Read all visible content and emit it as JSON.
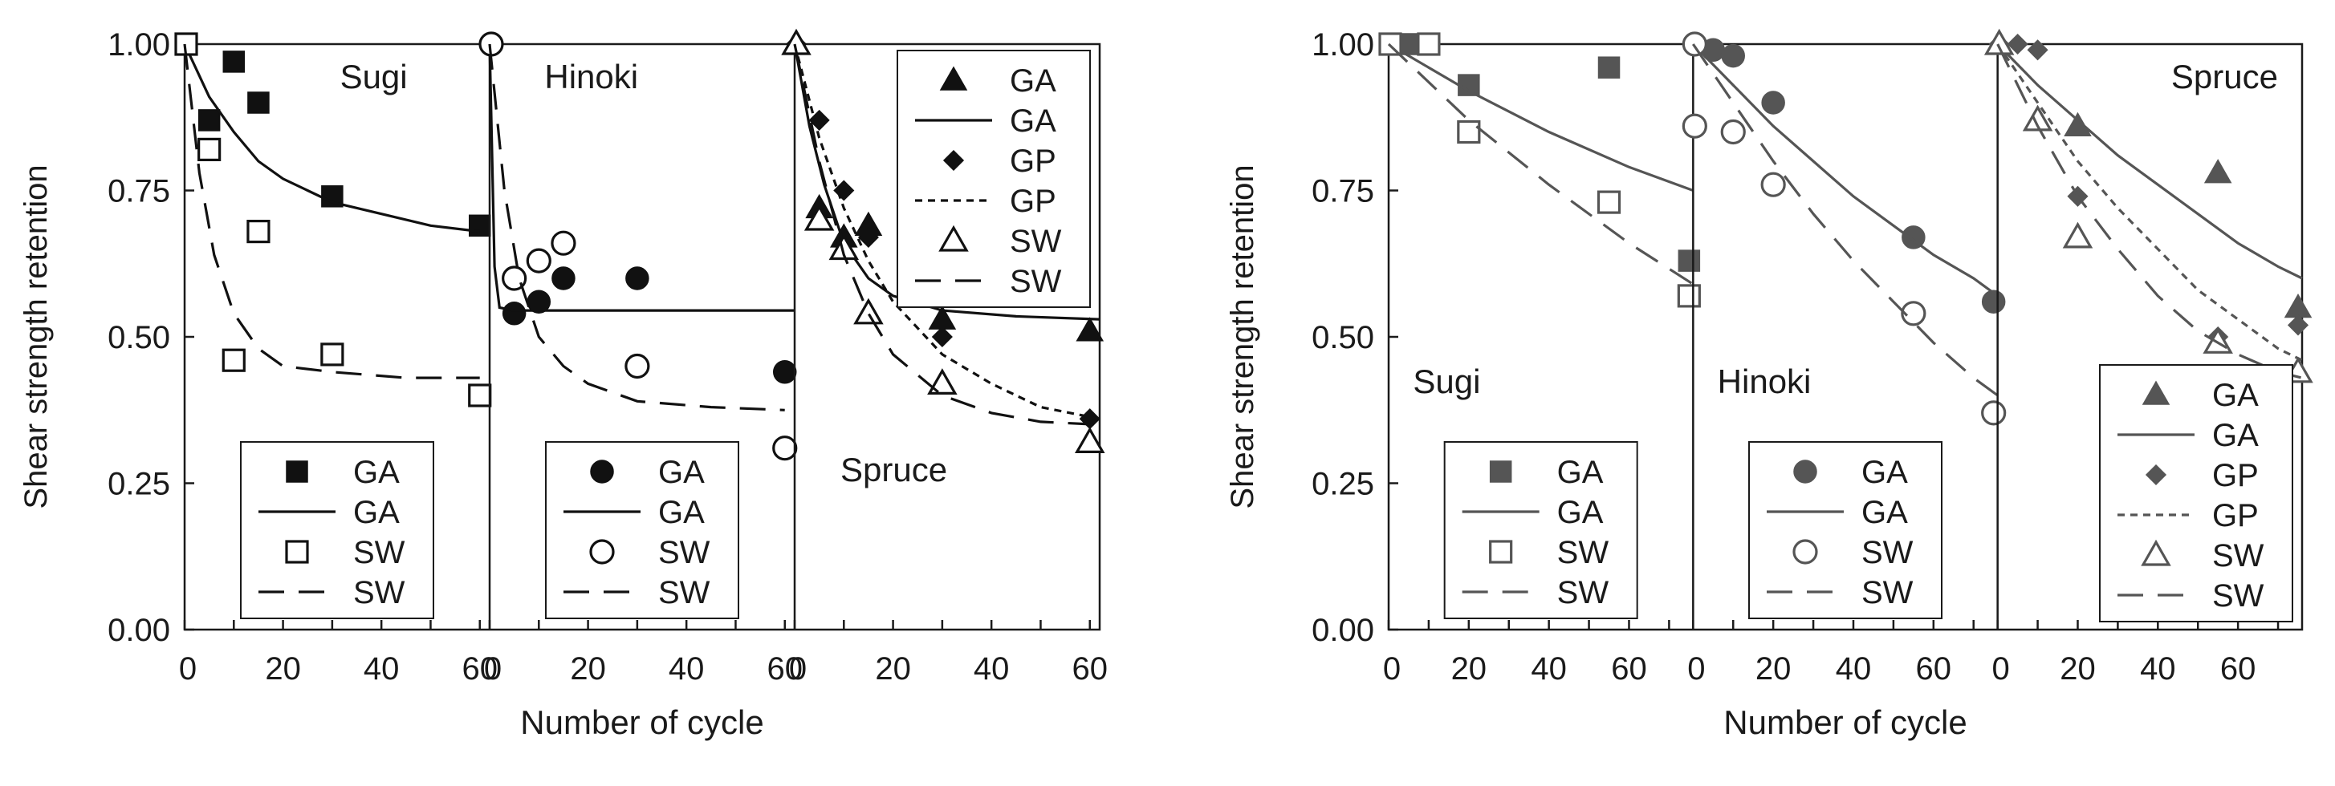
{
  "colors": {
    "left_ink": "#111111",
    "right_ink": "#555555",
    "background": "#ffffff"
  },
  "chart_data": [
    {
      "type": "scatter",
      "ylabel": "Shear strength retention",
      "xlabel": "Number of cycle",
      "ylim": [
        0,
        1
      ],
      "yticks": [
        "0.00",
        "0.25",
        "0.50",
        "0.75",
        "1.00"
      ],
      "grid": false,
      "panels": [
        {
          "label": "Sugi",
          "xlim": [
            0,
            62
          ],
          "xticks": [
            "0",
            "20",
            "40",
            "60"
          ],
          "legend_position": "bottom-center",
          "series": [
            {
              "name": "GA",
              "kind": "points",
              "marker": "square-filled",
              "x": [
                0,
                5,
                10,
                15,
                30,
                60
              ],
              "y": [
                1.0,
                0.87,
                0.97,
                0.9,
                0.74,
                0.69
              ]
            },
            {
              "name": "GA",
              "kind": "line",
              "dash": "solid",
              "x": [
                0,
                5,
                10,
                15,
                20,
                30,
                40,
                50,
                60
              ],
              "y": [
                1.0,
                0.91,
                0.85,
                0.8,
                0.77,
                0.73,
                0.71,
                0.69,
                0.68
              ]
            },
            {
              "name": "SW",
              "kind": "points",
              "marker": "square-open",
              "x": [
                0,
                5,
                10,
                15,
                30,
                60
              ],
              "y": [
                1.0,
                0.82,
                0.46,
                0.68,
                0.47,
                0.4
              ]
            },
            {
              "name": "SW",
              "kind": "line",
              "dash": "long",
              "x": [
                0,
                3,
                6,
                10,
                15,
                20,
                30,
                45,
                60
              ],
              "y": [
                1.0,
                0.78,
                0.64,
                0.54,
                0.48,
                0.45,
                0.44,
                0.43,
                0.43
              ]
            }
          ]
        },
        {
          "label": "Hinoki",
          "xlim": [
            0,
            62
          ],
          "xticks": [
            "0",
            "20",
            "40",
            "60"
          ],
          "legend_position": "bottom-center",
          "series": [
            {
              "name": "GA",
              "kind": "points",
              "marker": "circle-filled",
              "x": [
                0,
                5,
                10,
                15,
                30,
                60
              ],
              "y": [
                1.0,
                0.54,
                0.56,
                0.6,
                0.6,
                0.44
              ]
            },
            {
              "name": "GA",
              "kind": "line",
              "dash": "solid",
              "x": [
                0,
                1,
                2,
                5,
                10,
                20,
                40,
                62
              ],
              "y": [
                1.0,
                0.62,
                0.55,
                0.545,
                0.545,
                0.545,
                0.545,
                0.545
              ]
            },
            {
              "name": "SW",
              "kind": "points",
              "marker": "circle-open",
              "x": [
                0,
                5,
                10,
                15,
                30,
                60
              ],
              "y": [
                1.0,
                0.6,
                0.63,
                0.66,
                0.45,
                0.31
              ]
            },
            {
              "name": "SW",
              "kind": "line",
              "dash": "long",
              "x": [
                0,
                3,
                6,
                10,
                15,
                20,
                30,
                45,
                60
              ],
              "y": [
                1.0,
                0.75,
                0.6,
                0.5,
                0.45,
                0.42,
                0.39,
                0.38,
                0.375
              ]
            }
          ]
        },
        {
          "label": "Spruce",
          "xlim": [
            0,
            62
          ],
          "xticks": [
            "0",
            "20",
            "40",
            "60"
          ],
          "legend_position": "top-right",
          "series": [
            {
              "name": "GA",
              "kind": "points",
              "marker": "triangle-filled",
              "x": [
                0,
                5,
                10,
                15,
                30,
                60
              ],
              "y": [
                1.0,
                0.72,
                0.67,
                0.69,
                0.53,
                0.51
              ]
            },
            {
              "name": "GA",
              "kind": "line",
              "dash": "solid",
              "x": [
                0,
                3,
                6,
                10,
                15,
                20,
                30,
                45,
                62
              ],
              "y": [
                1.0,
                0.86,
                0.76,
                0.66,
                0.6,
                0.57,
                0.545,
                0.535,
                0.53
              ]
            },
            {
              "name": "GP",
              "kind": "points",
              "marker": "diamond-filled",
              "x": [
                0,
                5,
                10,
                15,
                30,
                60
              ],
              "y": [
                1.0,
                0.87,
                0.75,
                0.67,
                0.5,
                0.36
              ]
            },
            {
              "name": "GP",
              "kind": "line",
              "dash": "short",
              "x": [
                0,
                5,
                10,
                15,
                20,
                30,
                40,
                50,
                62
              ],
              "y": [
                1.0,
                0.84,
                0.72,
                0.63,
                0.56,
                0.47,
                0.42,
                0.38,
                0.36
              ]
            },
            {
              "name": "SW",
              "kind": "points",
              "marker": "triangle-open",
              "x": [
                0,
                5,
                10,
                15,
                30,
                60
              ],
              "y": [
                1.0,
                0.7,
                0.65,
                0.54,
                0.42,
                0.32
              ]
            },
            {
              "name": "SW",
              "kind": "line",
              "dash": "long",
              "x": [
                0,
                5,
                10,
                15,
                20,
                30,
                40,
                50,
                62
              ],
              "y": [
                1.0,
                0.8,
                0.64,
                0.54,
                0.47,
                0.4,
                0.37,
                0.355,
                0.35
              ]
            }
          ]
        }
      ]
    },
    {
      "type": "scatter",
      "ylabel": "Shear strength retention",
      "xlabel": "Number of cycle",
      "ylim": [
        0,
        1
      ],
      "yticks": [
        "0.00",
        "0.25",
        "0.50",
        "0.75",
        "1.00"
      ],
      "grid": false,
      "panels": [
        {
          "label": "Sugi",
          "xlim": [
            0,
            76
          ],
          "xticks": [
            "0",
            "20",
            "40",
            "60"
          ],
          "legend_position": "bottom-center",
          "series": [
            {
              "name": "GA",
              "kind": "points",
              "marker": "square-filled",
              "x": [
                0,
                5,
                20,
                55,
                75
              ],
              "y": [
                1.0,
                1.0,
                0.93,
                0.96,
                0.63
              ]
            },
            {
              "name": "GA",
              "kind": "line",
              "dash": "solid",
              "x": [
                0,
                20,
                40,
                60,
                76
              ],
              "y": [
                1.0,
                0.92,
                0.85,
                0.79,
                0.75
              ]
            },
            {
              "name": "SW",
              "kind": "points",
              "marker": "square-open",
              "x": [
                0,
                10,
                20,
                55,
                75
              ],
              "y": [
                1.0,
                1.0,
                0.85,
                0.73,
                0.57
              ]
            },
            {
              "name": "SW",
              "kind": "line",
              "dash": "long",
              "x": [
                0,
                20,
                40,
                60,
                76
              ],
              "y": [
                1.0,
                0.87,
                0.76,
                0.66,
                0.59
              ]
            }
          ]
        },
        {
          "label": "Hinoki",
          "xlim": [
            0,
            76
          ],
          "xticks": [
            "0",
            "20",
            "40",
            "60"
          ],
          "legend_position": "bottom-center",
          "series": [
            {
              "name": "GA",
              "kind": "points",
              "marker": "circle-filled",
              "x": [
                0,
                5,
                10,
                20,
                55,
                75
              ],
              "y": [
                1.0,
                0.99,
                0.98,
                0.9,
                0.67,
                0.56
              ]
            },
            {
              "name": "GA",
              "kind": "line",
              "dash": "solid",
              "x": [
                0,
                10,
                20,
                30,
                40,
                50,
                60,
                70,
                76
              ],
              "y": [
                1.0,
                0.93,
                0.86,
                0.8,
                0.74,
                0.69,
                0.64,
                0.6,
                0.57
              ]
            },
            {
              "name": "SW",
              "kind": "points",
              "marker": "circle-open",
              "x": [
                0,
                0,
                10,
                20,
                55,
                75
              ],
              "y": [
                1.0,
                0.86,
                0.85,
                0.76,
                0.54,
                0.37
              ]
            },
            {
              "name": "SW",
              "kind": "line",
              "dash": "long",
              "x": [
                0,
                10,
                20,
                30,
                40,
                50,
                60,
                70,
                76
              ],
              "y": [
                1.0,
                0.9,
                0.8,
                0.71,
                0.63,
                0.56,
                0.49,
                0.43,
                0.4
              ]
            }
          ]
        },
        {
          "label": "Spruce",
          "xlim": [
            0,
            76
          ],
          "xticks": [
            "0",
            "20",
            "40",
            "60"
          ],
          "legend_position": "bottom-right",
          "series": [
            {
              "name": "GA",
              "kind": "points",
              "marker": "triangle-filled",
              "x": [
                0,
                20,
                55,
                75
              ],
              "y": [
                1.0,
                0.86,
                0.78,
                0.55
              ]
            },
            {
              "name": "GA",
              "kind": "line",
              "dash": "solid",
              "x": [
                0,
                10,
                20,
                30,
                40,
                50,
                60,
                70,
                76
              ],
              "y": [
                1.0,
                0.93,
                0.87,
                0.81,
                0.76,
                0.71,
                0.66,
                0.62,
                0.6
              ]
            },
            {
              "name": "GP",
              "kind": "points",
              "marker": "diamond-filled",
              "x": [
                0,
                5,
                10,
                20,
                55,
                75
              ],
              "y": [
                1.0,
                1.0,
                0.99,
                0.74,
                0.5,
                0.52
              ]
            },
            {
              "name": "GP",
              "kind": "line",
              "dash": "short",
              "x": [
                0,
                10,
                20,
                30,
                40,
                50,
                60,
                70,
                76
              ],
              "y": [
                1.0,
                0.9,
                0.8,
                0.72,
                0.65,
                0.58,
                0.53,
                0.48,
                0.46
              ]
            },
            {
              "name": "SW",
              "kind": "points",
              "marker": "triangle-open",
              "x": [
                0,
                10,
                20,
                55,
                75
              ],
              "y": [
                1.0,
                0.87,
                0.67,
                0.49,
                0.44
              ]
            },
            {
              "name": "SW",
              "kind": "line",
              "dash": "long",
              "x": [
                0,
                10,
                20,
                30,
                40,
                50,
                60,
                70,
                76
              ],
              "y": [
                1.0,
                0.86,
                0.74,
                0.65,
                0.57,
                0.51,
                0.47,
                0.44,
                0.43
              ]
            }
          ]
        }
      ]
    }
  ]
}
